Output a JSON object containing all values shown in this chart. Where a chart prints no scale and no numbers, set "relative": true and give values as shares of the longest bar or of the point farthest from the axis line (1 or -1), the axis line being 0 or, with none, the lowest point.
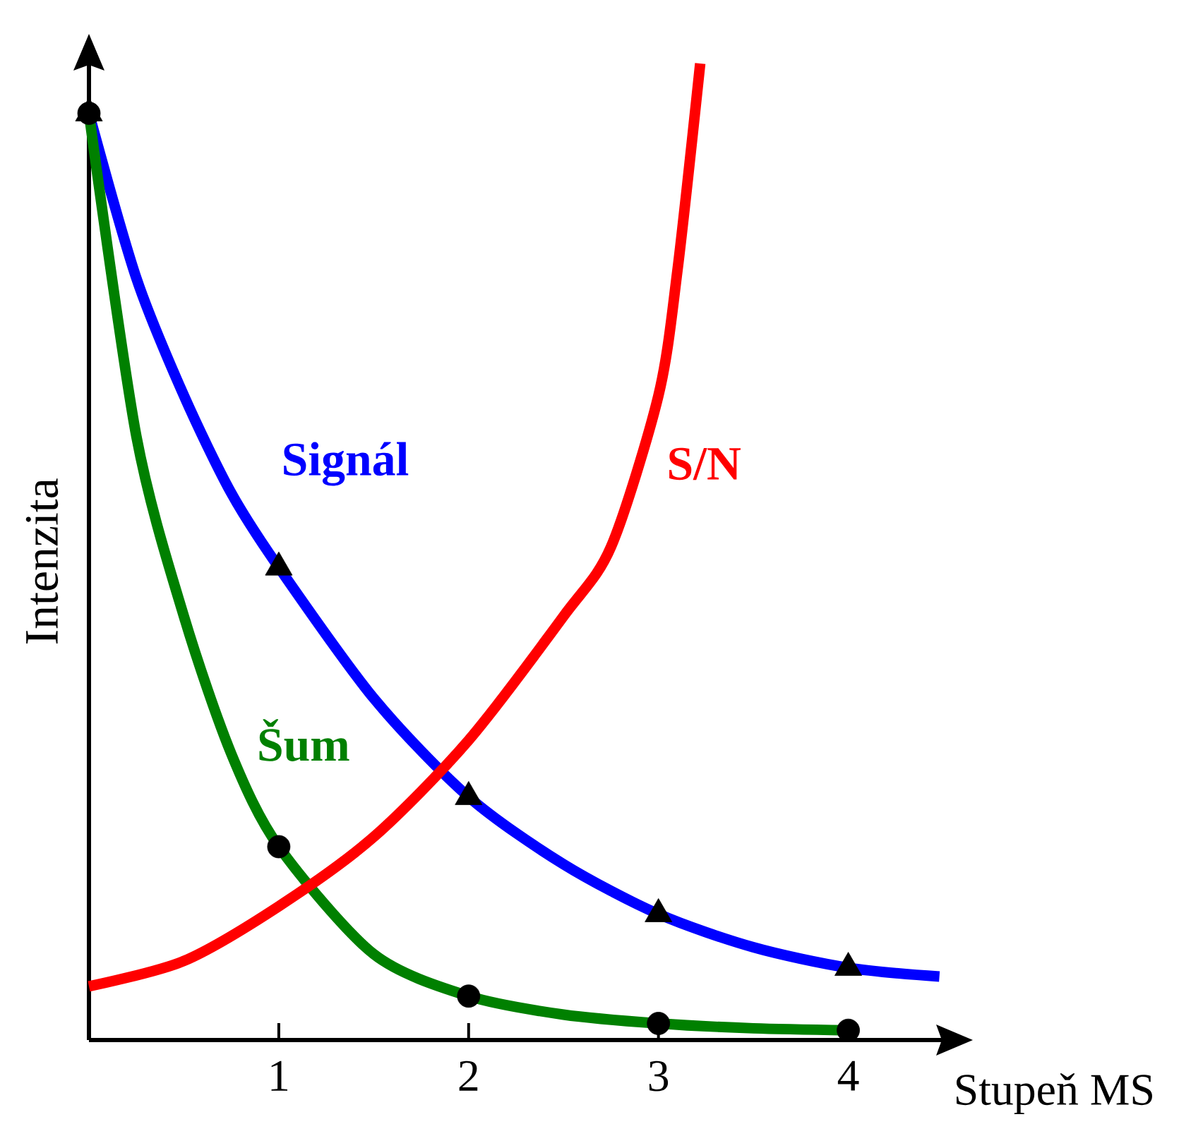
{
  "chart_data": {
    "type": "line",
    "relative": true,
    "xlabel": "Stupeň MS",
    "ylabel": "Intenzita",
    "xlim": [
      0,
      4.5
    ],
    "xticks": [
      1,
      2,
      3,
      4
    ],
    "series": [
      {
        "name": "Signál",
        "color": "#0000ff",
        "x": [
          0,
          0.25,
          0.5,
          0.75,
          1,
          1.5,
          2,
          2.5,
          3,
          3.5,
          4,
          4.48
        ],
        "values": [
          0.949,
          0.78,
          0.66,
          0.56,
          0.484,
          0.35,
          0.249,
          0.18,
          0.129,
          0.095,
          0.074,
          0.065
        ]
      },
      {
        "name": "Šum",
        "color": "#008000",
        "x": [
          0,
          0.25,
          0.5,
          0.75,
          1,
          1.5,
          2,
          2.5,
          3,
          3.5,
          4
        ],
        "values": [
          0.949,
          0.618,
          0.434,
          0.293,
          0.198,
          0.088,
          0.045,
          0.026,
          0.017,
          0.012,
          0.01
        ]
      },
      {
        "name": "S/N",
        "color": "#ff0000",
        "x": [
          0,
          0.5,
          1,
          1.5,
          2,
          2.5,
          2.75,
          3,
          3.1,
          3.22
        ],
        "values": [
          0.055,
          0.081,
          0.137,
          0.208,
          0.307,
          0.434,
          0.505,
          0.66,
          0.788,
          1.0
        ]
      },
      {
        "type": "scatter",
        "marker": "circle",
        "color": "#000000",
        "x": [
          0,
          1,
          2,
          3,
          4
        ],
        "values": [
          0.949,
          0.198,
          0.045,
          0.017,
          0.01
        ]
      },
      {
        "type": "scatter",
        "marker": "triangle",
        "color": "#000000",
        "x": [
          0,
          1,
          2,
          3,
          4
        ],
        "values": [
          0.949,
          0.484,
          0.249,
          0.129,
          0.074
        ]
      }
    ]
  }
}
